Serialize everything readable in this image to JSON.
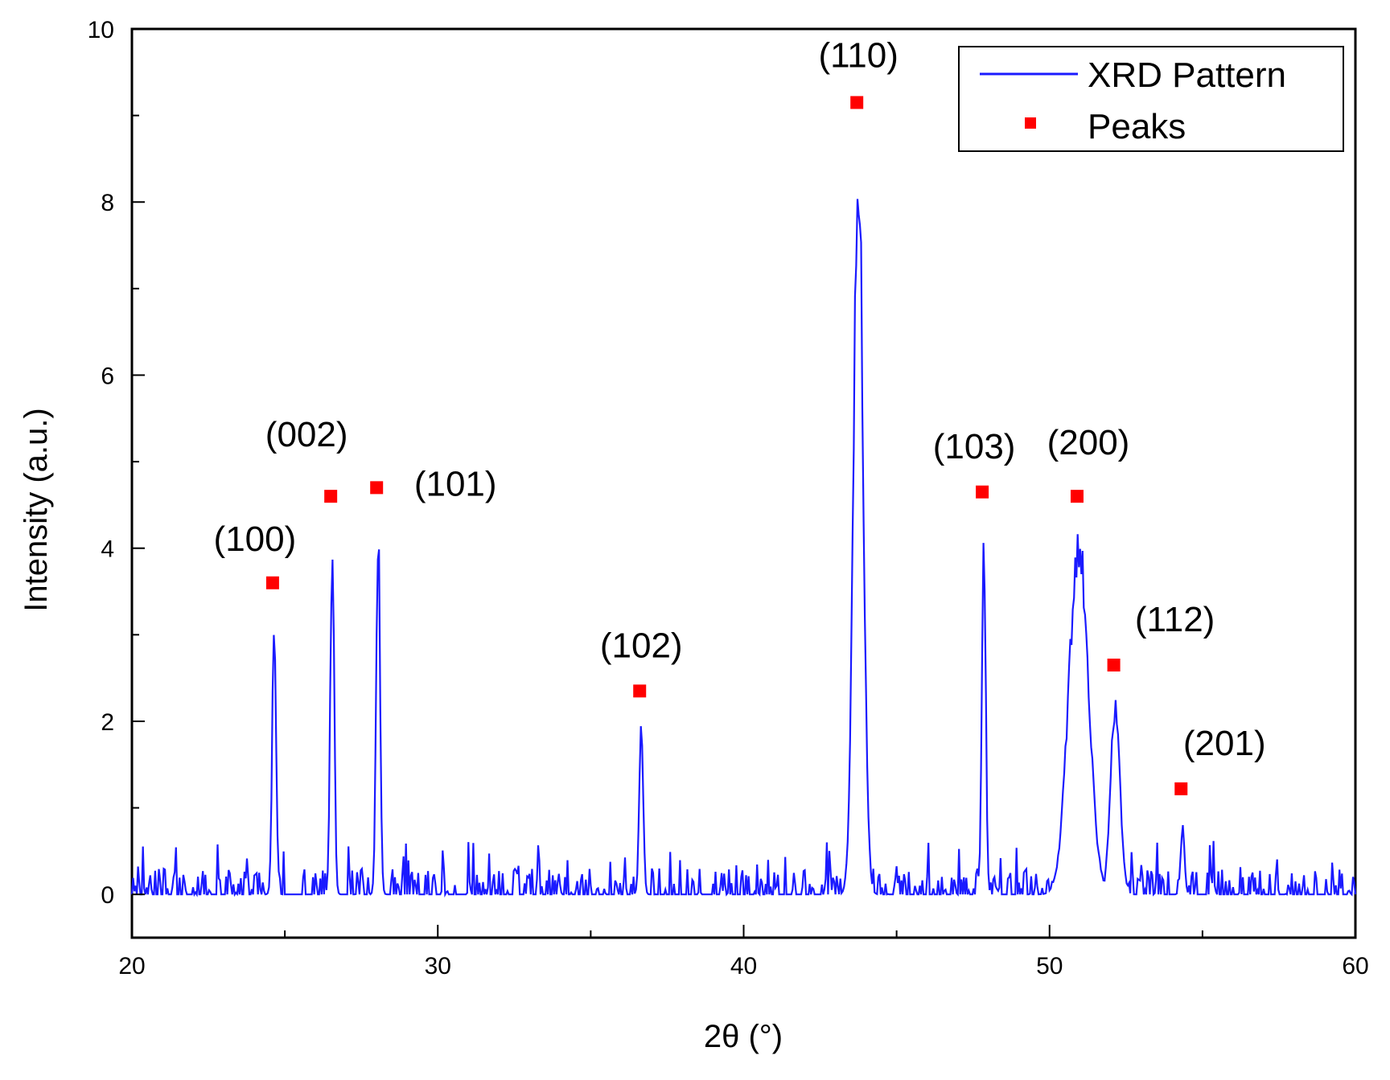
{
  "chart_data": {
    "type": "line",
    "xlabel": "2θ (°)",
    "ylabel": "Intensity (a.u.)",
    "xlim": [
      20,
      60
    ],
    "ylim": [
      -0.5,
      10
    ],
    "xticks": [
      20,
      30,
      40,
      50,
      60
    ],
    "yticks": [
      0,
      2,
      4,
      6,
      8,
      10
    ],
    "grid": false,
    "legend_position": "top-right",
    "colors": {
      "pattern": "#1a1aff",
      "peaks": "#ff0000"
    },
    "series": [
      {
        "name": "XRD Pattern",
        "kind": "line",
        "noise_max": 0.5
      },
      {
        "name": "Peaks",
        "kind": "scatter",
        "points": [
          {
            "label": "(100)",
            "x": 24.6,
            "y": 3.6,
            "line_height": 3.25
          },
          {
            "label": "(002)",
            "x": 26.5,
            "y": 4.6,
            "line_height": 4.3
          },
          {
            "label": "(101)",
            "x": 28.0,
            "y": 4.7,
            "line_height": 4.48
          },
          {
            "label": "(102)",
            "x": 36.6,
            "y": 2.35,
            "line_height": 2.15
          },
          {
            "label": "(110)",
            "x": 43.7,
            "y": 9.15,
            "line_height": 8.95
          },
          {
            "label": "(103)",
            "x": 47.8,
            "y": 4.65,
            "line_height": 4.5
          },
          {
            "label": "(200)",
            "x": 50.9,
            "y": 4.6,
            "line_height": 4.35
          },
          {
            "label": "(112)",
            "x": 52.1,
            "y": 2.65,
            "line_height": 2.3
          },
          {
            "label": "(201)",
            "x": 54.3,
            "y": 1.22,
            "line_height": 0.85
          }
        ]
      }
    ]
  }
}
